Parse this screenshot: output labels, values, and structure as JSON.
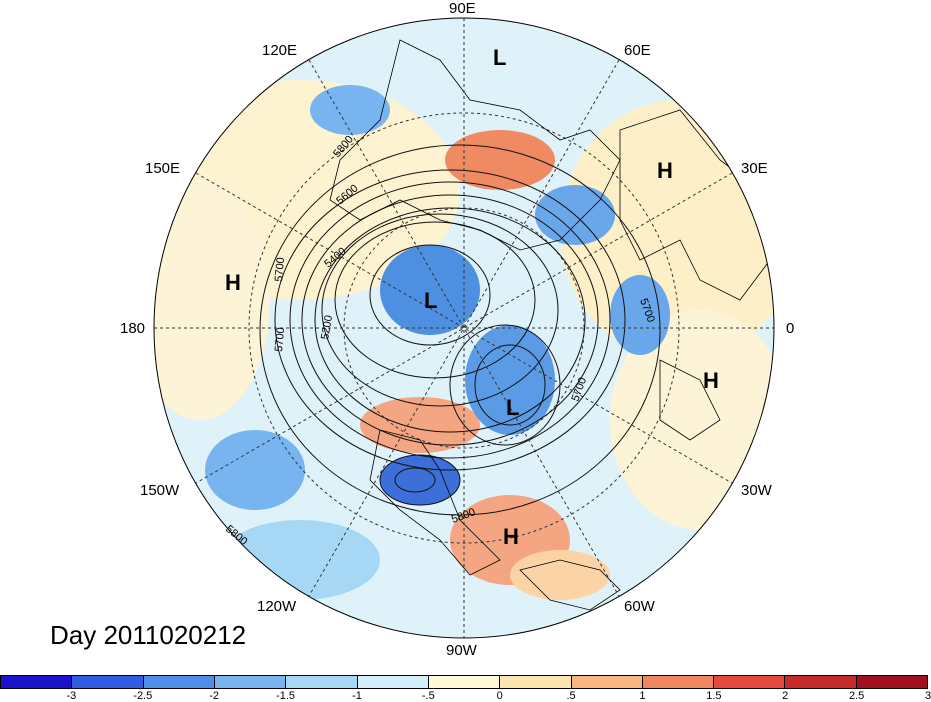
{
  "title": "Day 2011020212",
  "longitude_labels": {
    "n90e": "90E",
    "n60e": "60E",
    "n30e": "30E",
    "n0": "0",
    "n30w": "30W",
    "n60w": "60W",
    "n90w": "90W",
    "n120w": "120W",
    "n150w": "150W",
    "n180": "180",
    "n150e": "150E",
    "n120e": "120E"
  },
  "pressure_systems": [
    {
      "type": "L"
    },
    {
      "type": "H"
    },
    {
      "type": "H"
    },
    {
      "type": "L"
    },
    {
      "type": "H"
    },
    {
      "type": "L"
    },
    {
      "type": "H"
    }
  ],
  "contour_labels": [
    "5800",
    "5600",
    "5400",
    "5200",
    "5700",
    "5700",
    "5700",
    "5700",
    "5800",
    "5800"
  ],
  "colorbar": {
    "colors": [
      "#1a13c9",
      "#2f5ce0",
      "#4f8ee8",
      "#78b4f0",
      "#a6d8f5",
      "#d3f0fa",
      "#fdfad8",
      "#fce6b0",
      "#f7b580",
      "#ef8660",
      "#e54a3c",
      "#c72a2a",
      "#a00f1e"
    ],
    "ticks": [
      "-3",
      "-2.5",
      "-2",
      "-1.5",
      "-1",
      "-.5",
      "0",
      ".5",
      "1",
      "1.5",
      "2",
      "2.5",
      "3"
    ]
  }
}
